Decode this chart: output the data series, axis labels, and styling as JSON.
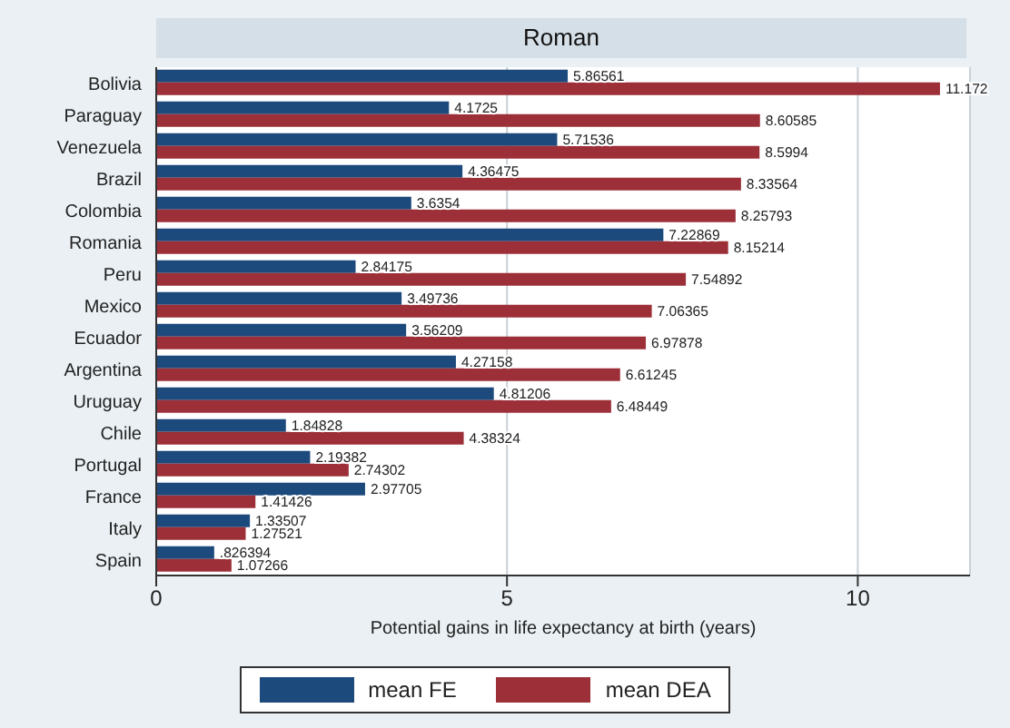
{
  "chart_data": {
    "type": "bar",
    "orientation": "horizontal",
    "title": "Roman",
    "xlabel": "Potential gains in life expectancy at birth (years)",
    "categories": [
      "Bolivia",
      "Paraguay",
      "Venezuela",
      "Brazil",
      "Colombia",
      "Romania",
      "Peru",
      "Mexico",
      "Ecuador",
      "Argentina",
      "Uruguay",
      "Chile",
      "Portugal",
      "France",
      "Italy",
      "Spain"
    ],
    "series": [
      {
        "name": "mean FE",
        "color": "#1c4a7c",
        "values": [
          5.86561,
          4.1725,
          5.71536,
          4.36475,
          3.6354,
          7.22869,
          2.84175,
          3.49736,
          3.56209,
          4.27158,
          4.81206,
          1.84828,
          2.19382,
          2.97705,
          1.33507,
          0.826394
        ],
        "value_labels": [
          "5.86561",
          "4.1725",
          "5.71536",
          "4.36475",
          "3.6354",
          "7.22869",
          "2.84175",
          "3.49736",
          "3.56209",
          "4.27158",
          "4.81206",
          "1.84828",
          "2.19382",
          "2.97705",
          "1.33507",
          ".826394"
        ]
      },
      {
        "name": "mean DEA",
        "color": "#9c2f38",
        "values": [
          11.172,
          8.60585,
          8.5994,
          8.33564,
          8.25793,
          8.15214,
          7.54892,
          7.06365,
          6.97878,
          6.61245,
          6.48449,
          4.38324,
          2.74302,
          1.41426,
          1.27521,
          1.07266
        ],
        "value_labels": [
          "11.172",
          "8.60585",
          "8.5994",
          "8.33564",
          "8.25793",
          "8.15214",
          "7.54892",
          "7.06365",
          "6.97878",
          "6.61245",
          "6.48449",
          "4.38324",
          "2.74302",
          "1.41426",
          "1.27521",
          "1.07266"
        ]
      }
    ],
    "xlim": [
      0,
      11.6
    ],
    "xticks": [
      0,
      5,
      10
    ],
    "grid": "x",
    "legend": "bottom"
  }
}
